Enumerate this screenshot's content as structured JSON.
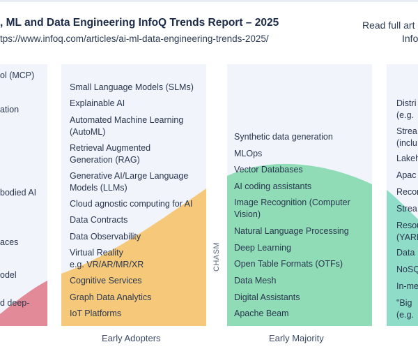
{
  "header": {
    "title": ", ML and Data Engineering InfoQ Trends Report – 2025",
    "url": "tps://www.infoq.com/articles/ai-ml-data-engineering-trends-2025/",
    "read_line1": "Read full art",
    "read_line2": "Info"
  },
  "columns": {
    "innovators": {
      "items": [
        "ol (MCP)",
        "ation",
        "bodied AI",
        "aces",
        "odel",
        "d deep-"
      ],
      "color": "#e38a98"
    },
    "early_adopters": {
      "label": "Early Adopters",
      "color": "#f6c97a",
      "items": [
        [
          "Small Language Models (SLMs)"
        ],
        [
          "Explainable AI"
        ],
        [
          "Automated Machine Learning",
          "(AutoML)"
        ],
        [
          "Retrieval Augmented",
          "Generation (RAG)"
        ],
        [
          "Generative AI/Large Language",
          "Models (LLMs)"
        ],
        [
          "Cloud agnostic computing for AI"
        ],
        [
          "Data Contracts"
        ],
        [
          "Data Observability"
        ],
        [
          "Virtual Reality",
          "e.g. VR/AR/MR/XR"
        ],
        [
          "Cognitive Services"
        ],
        [
          "Graph Data Analytics"
        ],
        [
          "IoT Platforms"
        ]
      ]
    },
    "chasm": "CHASM",
    "early_majority": {
      "label": "Early Majority",
      "color": "#8fdcb6",
      "items": [
        [
          "Synthetic data generation"
        ],
        [
          "MLOps"
        ],
        [
          "Vector Databases"
        ],
        [
          "AI coding assistants"
        ],
        [
          "Image Recognition (Computer",
          "Vision)"
        ],
        [
          "Natural Language Processing"
        ],
        [
          "Deep Learning"
        ],
        [
          "Open Table Formats (OTFs)"
        ],
        [
          "Data Mesh"
        ],
        [
          "Digital Assistants"
        ],
        [
          "Apache Beam"
        ]
      ]
    },
    "late_majority": {
      "color": "#8fdcc9",
      "items": [
        [
          "Distri",
          "(e.g."
        ],
        [
          "Strea",
          "(inclu"
        ],
        [
          "Lakeh"
        ],
        [
          "Apac"
        ],
        [
          "Recor"
        ],
        [
          "Strea"
        ],
        [
          "Resou",
          "(YARN"
        ],
        [
          "Data"
        ],
        [
          "NoSQ"
        ],
        [
          "In-me"
        ],
        [
          "\"Big",
          "(e.g."
        ]
      ]
    }
  }
}
